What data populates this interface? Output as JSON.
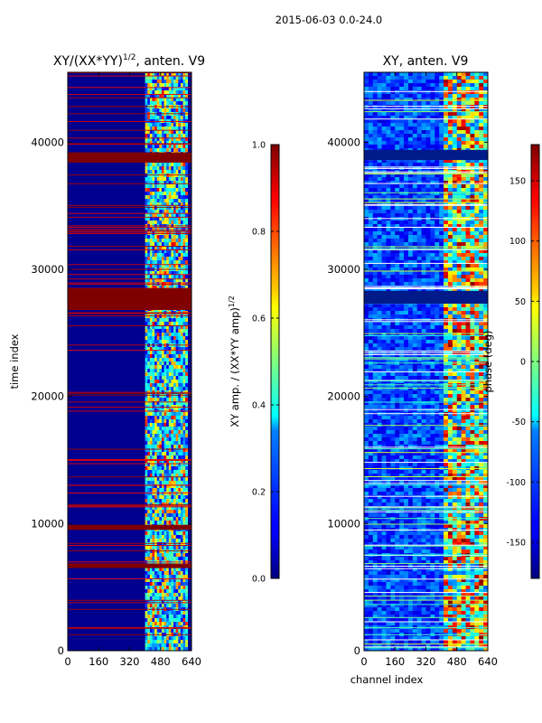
{
  "suptitle": "2015-06-03 0.0-24.0",
  "chart_data": [
    {
      "type": "heatmap",
      "title_main": "XY/(XX*YY)",
      "title_sup": "1/2",
      "title_tail": ", anten. V9",
      "xlabel": "",
      "ylabel": "time index",
      "x_ticks": [
        "0",
        "160",
        "320",
        "480",
        "640"
      ],
      "x_range": [
        0,
        640
      ],
      "y_ticks": [
        "0",
        "10000",
        "20000",
        "30000",
        "40000"
      ],
      "y_range": [
        0,
        45500
      ],
      "saturated_bands": [
        {
          "start": 38400,
          "end": 39200,
          "value": 1.0
        },
        {
          "start": 26800,
          "end": 28500,
          "value": 1.0
        },
        {
          "start": 9500,
          "end": 9900,
          "value": 1.0
        },
        {
          "start": 6500,
          "end": 6800,
          "value": 1.0
        }
      ],
      "active_channel_range": [
        400,
        620
      ],
      "colorbar": {
        "label_main": "XY amp. / (XX*YY amp)",
        "label_sup": "1/2",
        "ticks": [
          "0.0",
          "0.2",
          "0.4",
          "0.6",
          "0.8",
          "1.0"
        ],
        "range": [
          0.0,
          1.0
        ],
        "colormap": "jet"
      }
    },
    {
      "type": "heatmap",
      "title_main": "XY, anten. V9",
      "xlabel": "channel index",
      "ylabel": "",
      "x_ticks": [
        "0",
        "160",
        "320",
        "480",
        "640"
      ],
      "x_range": [
        0,
        640
      ],
      "y_ticks": [
        "0",
        "10000",
        "20000",
        "30000",
        "40000"
      ],
      "y_range": [
        0,
        45500
      ],
      "active_channel_range": [
        400,
        620
      ],
      "colorbar": {
        "label_main": "phase (deg)",
        "ticks": [
          "-150",
          "-100",
          "-50",
          "0",
          "50",
          "100",
          "150"
        ],
        "range": [
          -180,
          180
        ],
        "colormap": "jet"
      }
    }
  ]
}
